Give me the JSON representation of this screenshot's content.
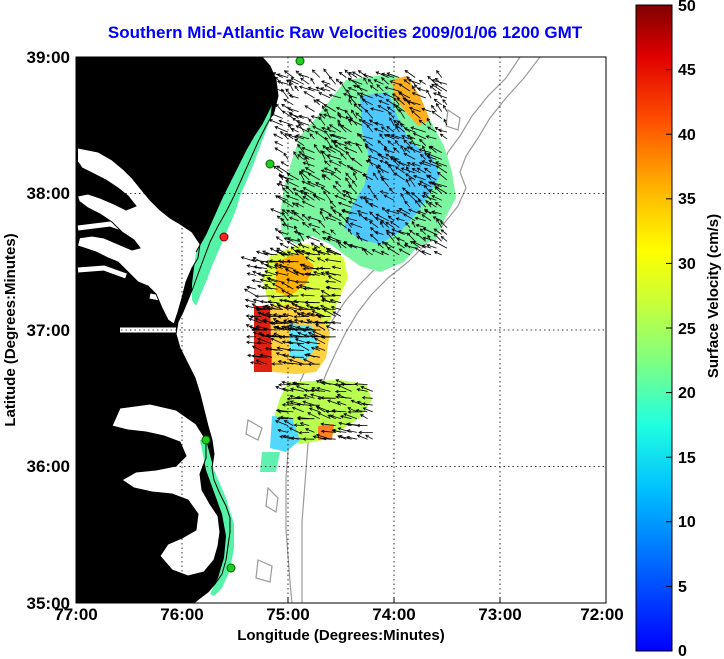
{
  "title": "Southern Mid-Atlantic Raw Velocities 2009/01/06 1200 GMT",
  "xlabel": "Longitude (Degrees:Minutes)",
  "ylabel": "Latitude (Degrees:Minutes)",
  "colorbar_label": "Surface Velocity (cm/s)",
  "colorbar_ticks": [
    "0",
    "5",
    "10",
    "15",
    "20",
    "25",
    "30",
    "35",
    "40",
    "45",
    "50"
  ],
  "x_ticks": [
    "77:00",
    "76:00",
    "75:00",
    "74:00",
    "73:00",
    "72:00"
  ],
  "y_ticks": [
    "39:00",
    "38:00",
    "37:00",
    "36:00",
    "35:00"
  ],
  "colors": {
    "land": "#55f3a8",
    "coast": "#000000",
    "bathymetry": "#9a9a9a",
    "grid": "#000000",
    "title": "#0000ff",
    "station_green": "#20d020",
    "station_red": "#ff2020"
  },
  "chart_data": {
    "type": "heatmap",
    "subtype": "surface current vector map",
    "xlim": [
      -77.0,
      -72.0
    ],
    "ylim": [
      35.0,
      39.0
    ],
    "clim": [
      0,
      50
    ],
    "colormap": "jet",
    "grid": true,
    "regions": [
      {
        "name_hint": "northern lobe",
        "lon": [
          -75.05,
          -73.5
        ],
        "lat": [
          37.55,
          38.85
        ],
        "speed_range": [
          8,
          32
        ]
      },
      {
        "name_hint": "middle band",
        "lon": [
          -75.3,
          -74.5
        ],
        "lat": [
          36.95,
          37.55
        ],
        "speed_range": [
          12,
          35
        ]
      },
      {
        "name_hint": "mouth of bay",
        "lon": [
          -75.25,
          -74.65
        ],
        "lat": [
          36.75,
          37.15
        ],
        "speed_range": [
          12,
          45
        ]
      },
      {
        "name_hint": "southern band",
        "lon": [
          -75.0,
          -74.2
        ],
        "lat": [
          36.2,
          36.6
        ],
        "speed_range": [
          10,
          42
        ]
      }
    ],
    "dominant_flow": "southwestward to westward",
    "stations": [
      {
        "lon": -75.03,
        "lat": 39.0,
        "color": "green"
      },
      {
        "lon": -75.3,
        "lat": 38.25,
        "color": "green"
      },
      {
        "lon": -75.5,
        "lat": 37.65,
        "color": "red"
      },
      {
        "lon": -75.7,
        "lat": 36.2,
        "color": "green"
      },
      {
        "lon": -75.5,
        "lat": 35.25,
        "color": "green"
      }
    ]
  }
}
